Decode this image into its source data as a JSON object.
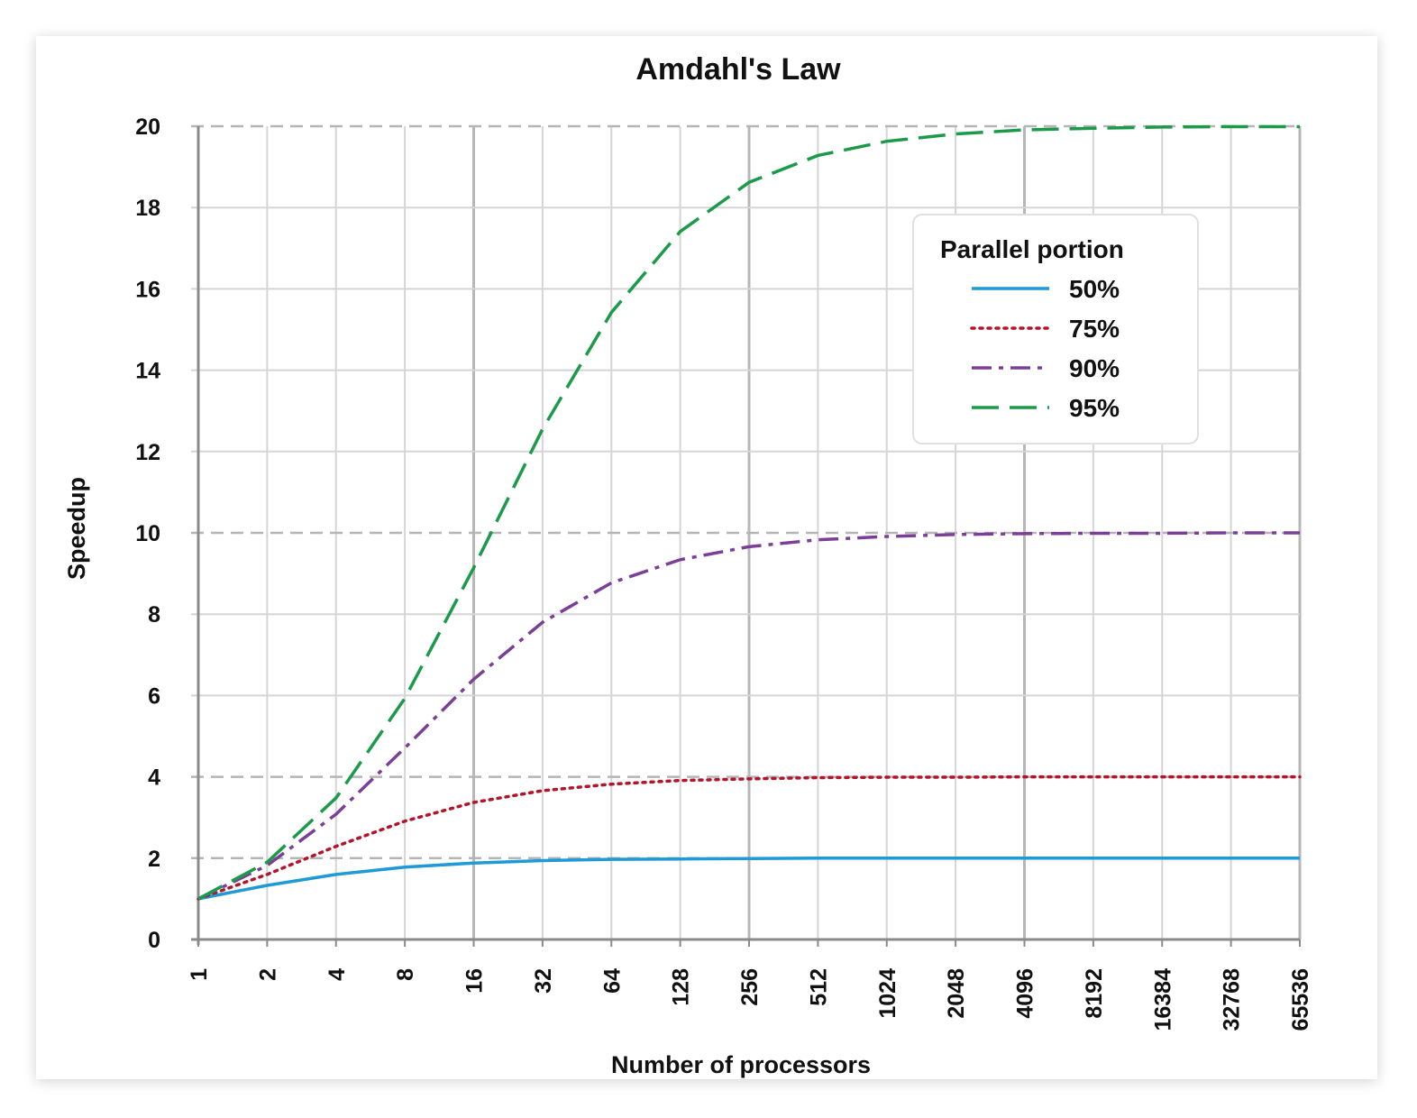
{
  "chart_data": {
    "type": "line",
    "title": "Amdahl's Law",
    "xlabel": "Number of processors",
    "ylabel": "Speedup",
    "x_scale": "log2",
    "x": [
      1,
      2,
      4,
      8,
      16,
      32,
      64,
      128,
      256,
      512,
      1024,
      2048,
      4096,
      8192,
      16384,
      32768,
      65536
    ],
    "x_tick_labels": [
      "1",
      "2",
      "4",
      "8",
      "16",
      "32",
      "64",
      "128",
      "256",
      "512",
      "1024",
      "2048",
      "4096",
      "8192",
      "16384",
      "32768",
      "65536"
    ],
    "ylim": [
      0,
      20
    ],
    "y_ticks": [
      0,
      2,
      4,
      6,
      8,
      10,
      12,
      14,
      16,
      18,
      20
    ],
    "grid": true,
    "legend": {
      "title": "Parallel portion",
      "position": "top-right"
    },
    "series": [
      {
        "name": "50%",
        "color": "#1f9ad6",
        "style": "solid",
        "values": [
          1.0,
          1.33,
          1.6,
          1.78,
          1.88,
          1.94,
          1.97,
          1.98,
          1.99,
          2.0,
          2.0,
          2.0,
          2.0,
          2.0,
          2.0,
          2.0,
          2.0
        ]
      },
      {
        "name": "75%",
        "color": "#b5132a",
        "style": "dotted",
        "values": [
          1.0,
          1.6,
          2.29,
          2.91,
          3.37,
          3.66,
          3.82,
          3.91,
          3.95,
          3.98,
          3.99,
          3.99,
          4.0,
          4.0,
          4.0,
          4.0,
          4.0
        ]
      },
      {
        "name": "90%",
        "color": "#7b3f98",
        "style": "dashdot",
        "values": [
          1.0,
          1.82,
          3.08,
          4.71,
          6.4,
          7.8,
          8.77,
          9.34,
          9.66,
          9.83,
          9.91,
          9.96,
          9.98,
          9.99,
          9.99,
          10.0,
          10.0
        ]
      },
      {
        "name": "95%",
        "color": "#1b9a4a",
        "style": "dashed",
        "values": [
          1.0,
          1.9,
          3.48,
          5.93,
          9.14,
          12.55,
          15.42,
          17.41,
          18.62,
          19.28,
          19.63,
          19.81,
          19.91,
          19.95,
          19.98,
          19.99,
          19.99
        ]
      }
    ]
  }
}
